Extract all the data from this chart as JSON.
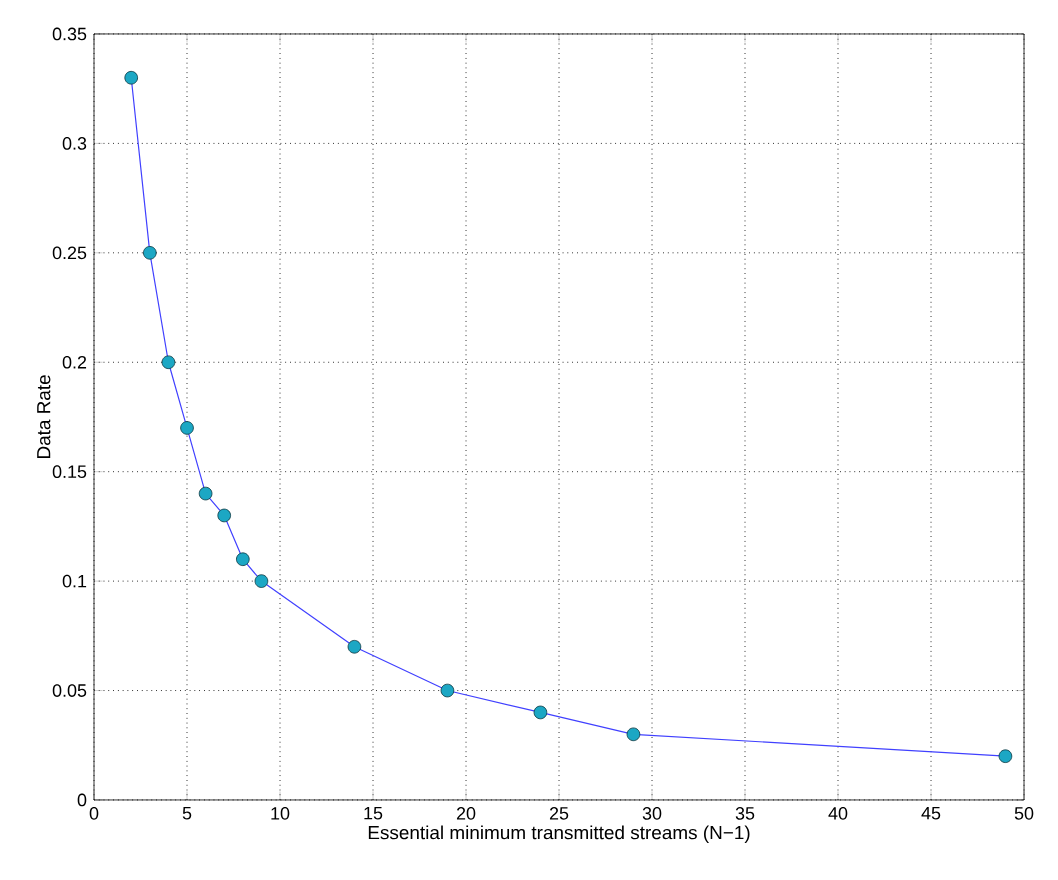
{
  "chart_data": {
    "type": "line",
    "xlabel": "Essential minimum transmitted streams (N−1)",
    "ylabel": "Data Rate",
    "x": [
      2,
      3,
      4,
      5,
      6,
      7,
      8,
      9,
      14,
      19,
      24,
      29,
      49
    ],
    "series": [
      {
        "color": "#1ca7c4",
        "values": [
          0.33,
          0.25,
          0.2,
          0.17,
          0.14,
          0.13,
          0.11,
          0.1,
          0.07,
          0.05,
          0.04,
          0.03,
          0.02
        ]
      }
    ],
    "xlim": [
      0,
      50
    ],
    "xticks": [
      0,
      5,
      10,
      15,
      20,
      25,
      30,
      35,
      40,
      45,
      50
    ],
    "ylim": [
      0,
      0.35
    ],
    "yticks": [
      0,
      0.05,
      0.1,
      0.15,
      0.2,
      0.25,
      0.3,
      0.35
    ],
    "grid": true,
    "marker": "circle",
    "line_style": "solid"
  }
}
